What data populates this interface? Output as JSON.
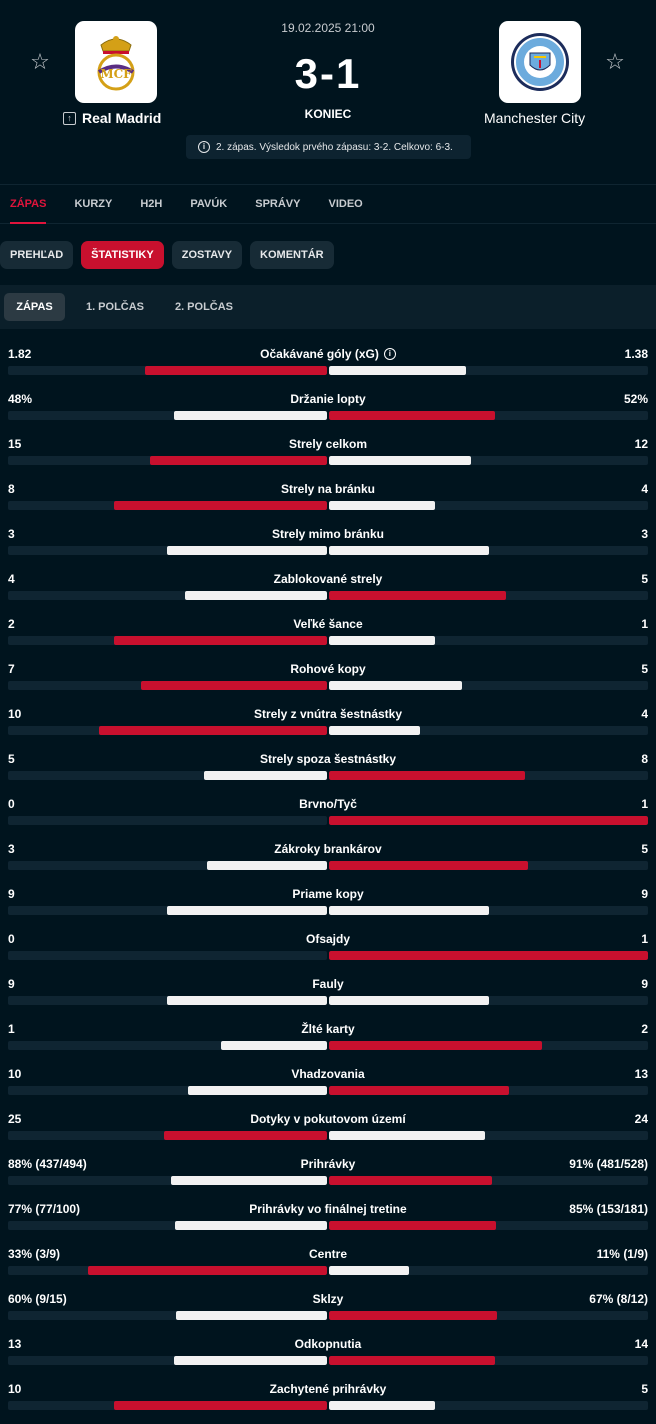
{
  "match": {
    "datetime": "19.02.2025 21:00",
    "score": "3-1",
    "status": "KONIEC",
    "info": "2. zápas. Výsledok prvého zápasu: 3-2. Celkovo: 6-3.",
    "home": {
      "name": "Real Madrid",
      "logo": "real-madrid-crest"
    },
    "away": {
      "name": "Manchester City",
      "logo": "manchester-city-crest"
    }
  },
  "main_tabs": [
    "ZÁPAS",
    "KURZY",
    "H2H",
    "PAVÚK",
    "SPRÁVY",
    "VIDEO"
  ],
  "sub_tabs": [
    "PREHĽAD",
    "ŠTATISTIKY",
    "ZOSTAVY",
    "KOMENTÁR"
  ],
  "period_tabs": [
    "ZÁPAS",
    "1. POLČAS",
    "2. POLČAS"
  ],
  "colors": {
    "accent": "#c8102e",
    "background": "#00141e",
    "bar_lose": "#f2f2f2"
  },
  "stats": [
    {
      "name": "Očakávané góly (xG)",
      "home": "1.82",
      "away": "1.38",
      "home_share": 0.569,
      "away_share": 0.431,
      "info": true
    },
    {
      "name": "Držanie lopty",
      "home": "48%",
      "away": "52%",
      "home_share": 0.48,
      "away_share": 0.52
    },
    {
      "name": "Strely celkom",
      "home": "15",
      "away": "12",
      "home_share": 0.556,
      "away_share": 0.444
    },
    {
      "name": "Strely na bránku",
      "home": "8",
      "away": "4",
      "home_share": 0.667,
      "away_share": 0.333
    },
    {
      "name": "Strely mimo bránku",
      "home": "3",
      "away": "3",
      "home_share": 0.5,
      "away_share": 0.5
    },
    {
      "name": "Zablokované strely",
      "home": "4",
      "away": "5",
      "home_share": 0.444,
      "away_share": 0.556
    },
    {
      "name": "Veľké šance",
      "home": "2",
      "away": "1",
      "home_share": 0.667,
      "away_share": 0.333
    },
    {
      "name": "Rohové kopy",
      "home": "7",
      "away": "5",
      "home_share": 0.583,
      "away_share": 0.417
    },
    {
      "name": "Strely z vnútra šestnástky",
      "home": "10",
      "away": "4",
      "home_share": 0.714,
      "away_share": 0.286
    },
    {
      "name": "Strely spoza šestnástky",
      "home": "5",
      "away": "8",
      "home_share": 0.385,
      "away_share": 0.615
    },
    {
      "name": "Brvno/Tyč",
      "home": "0",
      "away": "1",
      "home_share": 0,
      "away_share": 1
    },
    {
      "name": "Zákroky brankárov",
      "home": "3",
      "away": "5",
      "home_share": 0.375,
      "away_share": 0.625
    },
    {
      "name": "Priame kopy",
      "home": "9",
      "away": "9",
      "home_share": 0.5,
      "away_share": 0.5
    },
    {
      "name": "Ofsajdy",
      "home": "0",
      "away": "1",
      "home_share": 0,
      "away_share": 1
    },
    {
      "name": "Fauly",
      "home": "9",
      "away": "9",
      "home_share": 0.5,
      "away_share": 0.5
    },
    {
      "name": "Žlté karty",
      "home": "1",
      "away": "2",
      "home_share": 0.333,
      "away_share": 0.667
    },
    {
      "name": "Vhadzovania",
      "home": "10",
      "away": "13",
      "home_share": 0.435,
      "away_share": 0.565
    },
    {
      "name": "Dotyky v pokutovom území",
      "home": "25",
      "away": "24",
      "home_share": 0.51,
      "away_share": 0.49
    },
    {
      "name": "Prihrávky",
      "home": "88% (437/494)",
      "away": "91% (481/528)",
      "home_share": 0.49,
      "away_share": 0.51
    },
    {
      "name": "Prihrávky vo finálnej tretine",
      "home": "77% (77/100)",
      "away": "85% (153/181)",
      "home_share": 0.475,
      "away_share": 0.525
    },
    {
      "name": "Centre",
      "home": "33% (3/9)",
      "away": "11% (1/9)",
      "home_share": 0.75,
      "away_share": 0.25
    },
    {
      "name": "Sklzy",
      "home": "60% (9/15)",
      "away": "67% (8/12)",
      "home_share": 0.472,
      "away_share": 0.528
    },
    {
      "name": "Odkopnutia",
      "home": "13",
      "away": "14",
      "home_share": 0.481,
      "away_share": 0.519
    },
    {
      "name": "Zachytené prihrávky",
      "home": "10",
      "away": "5",
      "home_share": 0.667,
      "away_share": 0.333
    }
  ]
}
